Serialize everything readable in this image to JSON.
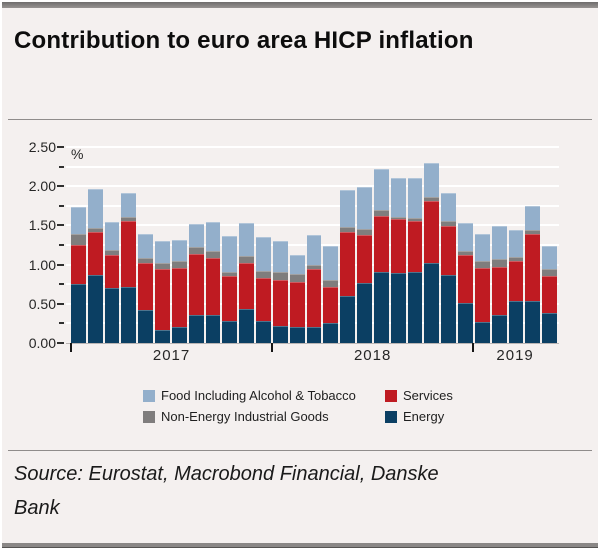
{
  "page": {
    "title": "Contribution to euro area HICP inflation",
    "source": "Source: Eurostat, Macrobond Financial, Danske Bank"
  },
  "colors": {
    "background": "#f4f0ef",
    "frame_bars": "#8a8786",
    "gridline": "#ffffff",
    "energy": "#0b3f63",
    "services": "#bf1b22",
    "non_energy_industrial_goods": "#7f7d7d",
    "food": "#93afcb"
  },
  "chart_data": {
    "type": "bar",
    "stacked": true,
    "title": "Contribution to euro area HICP inflation",
    "unit_label": "%",
    "ylim": [
      0,
      2.5
    ],
    "y_ticks": [
      {
        "value": 0.0,
        "label": "0.00"
      },
      {
        "value": 0.5,
        "label": "0.50"
      },
      {
        "value": 1.0,
        "label": "1.00"
      },
      {
        "value": 1.5,
        "label": "1.50"
      },
      {
        "value": 2.0,
        "label": "2.00"
      },
      {
        "value": 2.5,
        "label": "2.50"
      }
    ],
    "minor_tick_step": 0.25,
    "gridline_step": 0.25,
    "grid": true,
    "legend_position": "bottom",
    "x": [
      "2017-01",
      "2017-02",
      "2017-03",
      "2017-04",
      "2017-05",
      "2017-06",
      "2017-07",
      "2017-08",
      "2017-09",
      "2017-10",
      "2017-11",
      "2017-12",
      "2018-01",
      "2018-02",
      "2018-03",
      "2018-04",
      "2018-05",
      "2018-06",
      "2018-07",
      "2018-08",
      "2018-09",
      "2018-10",
      "2018-11",
      "2018-12",
      "2019-01",
      "2019-02",
      "2019-03",
      "2019-04",
      "2019-05"
    ],
    "year_groups": [
      {
        "label": "2017",
        "from": 0,
        "to": 11
      },
      {
        "label": "2018",
        "from": 12,
        "to": 23
      },
      {
        "label": "2019",
        "from": 24,
        "to": 28
      }
    ],
    "series": [
      {
        "name": "Energy",
        "color": "#0b3f63",
        "values": [
          0.75,
          0.87,
          0.7,
          0.72,
          0.42,
          0.17,
          0.2,
          0.36,
          0.36,
          0.28,
          0.43,
          0.28,
          0.22,
          0.21,
          0.2,
          0.25,
          0.6,
          0.77,
          0.9,
          0.89,
          0.9,
          1.02,
          0.87,
          0.51,
          0.27,
          0.36,
          0.54,
          0.53,
          0.38
        ]
      },
      {
        "name": "Services",
        "color": "#bf1b22",
        "values": [
          0.5,
          0.55,
          0.42,
          0.84,
          0.6,
          0.77,
          0.76,
          0.77,
          0.73,
          0.57,
          0.59,
          0.55,
          0.58,
          0.57,
          0.75,
          0.47,
          0.81,
          0.61,
          0.72,
          0.69,
          0.66,
          0.79,
          0.62,
          0.61,
          0.69,
          0.61,
          0.51,
          0.86,
          0.48
        ]
      },
      {
        "name": "Non-Energy Industrial Goods",
        "color": "#7f7d7d",
        "values": [
          0.14,
          0.05,
          0.07,
          0.05,
          0.07,
          0.08,
          0.09,
          0.1,
          0.09,
          0.06,
          0.09,
          0.09,
          0.11,
          0.1,
          0.05,
          0.08,
          0.07,
          0.08,
          0.08,
          0.03,
          0.04,
          0.05,
          0.07,
          0.06,
          0.09,
          0.1,
          0.05,
          0.05,
          0.09
        ]
      },
      {
        "name": "Food Including Alcohol & Tobacco",
        "color": "#93afcb",
        "values": [
          0.34,
          0.49,
          0.35,
          0.3,
          0.3,
          0.28,
          0.27,
          0.29,
          0.37,
          0.45,
          0.42,
          0.43,
          0.39,
          0.24,
          0.38,
          0.44,
          0.47,
          0.53,
          0.52,
          0.5,
          0.5,
          0.44,
          0.36,
          0.35,
          0.34,
          0.42,
          0.34,
          0.31,
          0.29
        ]
      }
    ],
    "legend_display": [
      "Food Including Alcohol & Tobacco",
      "Services",
      "Non-Energy Industrial Goods",
      "Energy"
    ]
  }
}
